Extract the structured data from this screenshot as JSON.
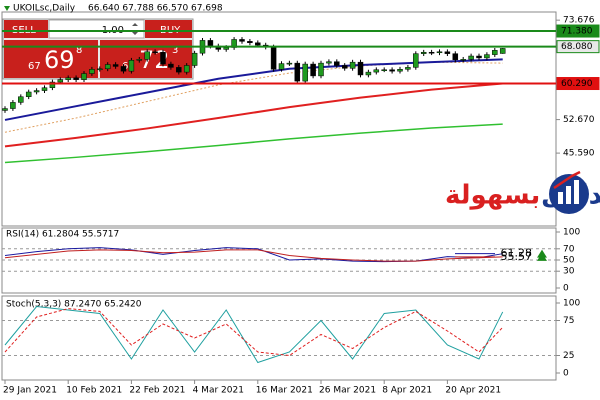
{
  "chart_data": [
    {
      "type": "candlestick",
      "title": "UKOILsc,Daily",
      "ohlc_text": "66.640 67.788 66.570 67.698",
      "categories": [
        "29 Jan 2021",
        null,
        null,
        null,
        null,
        null,
        null,
        null,
        "10 Feb 2021",
        null,
        null,
        null,
        null,
        null,
        null,
        null,
        "22 Feb 2021",
        null,
        null,
        null,
        null,
        null,
        null,
        null,
        "4 Mar 2021",
        null,
        null,
        null,
        null,
        null,
        null,
        null,
        "16 Mar 2021",
        null,
        null,
        null,
        null,
        null,
        null,
        null,
        "26 Mar 2021",
        null,
        null,
        null,
        null,
        null,
        null,
        null,
        "8 Apr 2021",
        null,
        null,
        null,
        null,
        null,
        null,
        null,
        "20 Apr 2021",
        null,
        null,
        null,
        null,
        null,
        null,
        null
      ],
      "open": [
        54.6,
        55.0,
        56.3,
        57.5,
        58.5,
        58.8,
        59.4,
        60.6,
        61.1,
        61.5,
        61.1,
        62.4,
        63.3,
        63.4,
        64.3,
        63.9,
        62.9,
        65.2,
        65.4,
        67.0,
        66.9,
        64.4,
        63.7,
        62.7,
        64.1,
        66.7,
        69.4,
        68.2,
        67.5,
        67.9,
        69.6,
        69.2,
        68.9,
        68.4,
        68.0,
        63.3,
        64.5,
        64.6,
        60.8,
        64.4,
        61.9,
        64.6,
        64.9,
        64.1,
        63.5,
        64.8,
        62.1,
        62.7,
        63.2,
        63.2,
        62.9,
        63.3,
        63.7,
        66.6,
        66.9,
        66.8,
        67.0,
        66.6,
        65.3,
        65.4,
        66.1,
        65.7,
        66.4,
        66.64
      ],
      "high": [
        55.5,
        56.8,
        58.0,
        59.0,
        59.3,
        59.9,
        61.1,
        61.6,
        62.0,
        62.0,
        62.9,
        63.8,
        63.9,
        64.8,
        64.8,
        64.4,
        65.7,
        65.9,
        67.5,
        67.5,
        67.4,
        64.9,
        64.2,
        64.6,
        67.2,
        69.9,
        69.9,
        68.7,
        68.4,
        70.1,
        70.1,
        69.7,
        69.4,
        68.9,
        68.5,
        65.0,
        65.1,
        65.1,
        64.9,
        64.9,
        65.1,
        65.4,
        65.4,
        64.6,
        65.3,
        65.3,
        63.2,
        63.7,
        63.7,
        63.7,
        63.8,
        64.2,
        67.1,
        67.4,
        67.4,
        67.5,
        67.5,
        67.1,
        65.9,
        66.6,
        66.6,
        66.9,
        67.8,
        67.788
      ],
      "low": [
        54.1,
        54.5,
        55.8,
        57.0,
        58.0,
        58.3,
        58.9,
        60.1,
        60.6,
        60.6,
        60.6,
        61.9,
        62.8,
        62.9,
        63.4,
        62.4,
        62.4,
        64.7,
        64.9,
        66.4,
        63.9,
        63.2,
        62.2,
        62.2,
        63.6,
        66.2,
        67.7,
        67.0,
        67.0,
        67.4,
        68.7,
        68.4,
        67.9,
        67.5,
        62.8,
        62.8,
        64.0,
        60.3,
        60.3,
        61.4,
        61.4,
        64.1,
        63.6,
        63.0,
        63.0,
        61.6,
        61.6,
        62.2,
        62.7,
        62.4,
        62.4,
        62.8,
        63.2,
        66.1,
        66.3,
        66.3,
        66.1,
        64.8,
        64.8,
        64.9,
        65.2,
        65.2,
        65.9,
        66.57
      ],
      "close": [
        55.0,
        56.3,
        57.5,
        58.5,
        58.8,
        59.4,
        60.6,
        61.1,
        61.5,
        61.1,
        62.4,
        63.3,
        63.4,
        64.3,
        63.9,
        62.9,
        65.2,
        65.4,
        67.0,
        66.9,
        64.4,
        63.7,
        62.7,
        64.1,
        66.7,
        69.4,
        68.2,
        67.5,
        67.9,
        69.6,
        69.2,
        68.9,
        68.4,
        68.0,
        63.3,
        64.5,
        64.6,
        60.8,
        64.4,
        61.9,
        64.6,
        64.9,
        64.1,
        63.5,
        64.8,
        62.1,
        62.7,
        63.2,
        63.2,
        62.9,
        63.3,
        63.7,
        66.6,
        66.9,
        66.8,
        67.0,
        66.6,
        65.3,
        65.4,
        66.1,
        65.7,
        66.4,
        67.3,
        67.698
      ],
      "up_color": "#1f9a1f",
      "down_color": "#000000",
      "ylim": [
        30.4,
        75.4
      ],
      "yticks": [
        73.676,
        {
          "value": 52.67,
          "label": "52.670"
        },
        {
          "value": 45.59,
          "label": "45.590"
        }
      ],
      "lines": [
        {
          "color": "#e0a060",
          "dash": "2,2",
          "width": 1,
          "x": [
            0,
            9,
            18,
            27,
            36,
            45,
            54,
            63
          ],
          "values": [
            50.0,
            53.0,
            56.5,
            60.0,
            62.5,
            64.0,
            64.8,
            64.6
          ]
        },
        {
          "color": "#30c030",
          "dash": "",
          "width": 1.5,
          "x": [
            0,
            9,
            18,
            27,
            36,
            45,
            54,
            63
          ],
          "values": [
            43.6,
            44.7,
            45.9,
            47.2,
            48.6,
            49.8,
            50.9,
            51.7
          ]
        },
        {
          "color": "#e02020",
          "dash": "",
          "width": 2,
          "x": [
            0,
            9,
            18,
            27,
            36,
            45,
            54,
            63
          ],
          "values": [
            47.0,
            48.8,
            50.8,
            53.0,
            55.3,
            57.3,
            59.0,
            60.29
          ]
        },
        {
          "color": "#1a1a9a",
          "dash": "",
          "width": 2,
          "x": [
            0,
            9,
            18,
            27,
            36,
            45,
            54,
            63
          ],
          "values": [
            52.6,
            55.5,
            58.4,
            61.3,
            63.4,
            64.2,
            64.8,
            65.4
          ]
        }
      ],
      "levels": [
        {
          "value": 71.38,
          "label": "71.380",
          "color": "#1a8a1a",
          "text_color": "#ffffff"
        },
        {
          "value": 68.08,
          "label": "68.080",
          "color": "#1a8a1a",
          "text_color": "#000000"
        },
        {
          "value": 60.29,
          "label": "60.290",
          "color": "#e01010",
          "text_color": "#ffffff"
        }
      ]
    },
    {
      "type": "line",
      "title": "RSI(14) 61.2804 55.5717",
      "ylim": [
        0,
        100
      ],
      "yticks": [
        100,
        70,
        50,
        30,
        0
      ],
      "level_lines": true,
      "x": [
        0,
        4,
        8,
        12,
        16,
        20,
        24,
        28,
        32,
        36,
        40,
        44,
        48,
        52,
        56,
        60,
        63
      ],
      "series": [
        {
          "color": "#1a1aa0",
          "values": [
            58,
            65,
            70,
            72,
            68,
            60,
            67,
            72,
            70,
            50,
            52,
            48,
            47,
            48,
            56,
            54,
            61.28
          ],
          "last_label": "61.28"
        },
        {
          "color": "#c02020",
          "values": [
            54,
            60,
            66,
            68,
            67,
            63,
            64,
            68,
            68,
            58,
            53,
            50,
            48,
            48,
            52,
            54,
            55.57
          ],
          "last_label": "55.57"
        }
      ],
      "label_color": "#1a8a1a"
    },
    {
      "type": "line",
      "title": "Stoch(5,3,3) 87.2470 65.2420",
      "ylim": [
        0,
        100
      ],
      "yticks": [
        100,
        75,
        25,
        0
      ],
      "level_lines": true,
      "x": [
        0,
        4,
        8,
        12,
        16,
        20,
        24,
        28,
        32,
        36,
        40,
        44,
        48,
        52,
        56,
        60,
        63
      ],
      "series": [
        {
          "color": "#20a0a0",
          "dash": "",
          "values": [
            40,
            95,
            90,
            85,
            20,
            90,
            30,
            90,
            15,
            30,
            75,
            20,
            85,
            90,
            40,
            20,
            87.247
          ]
        },
        {
          "color": "#e02020",
          "dash": "3,2",
          "values": [
            30,
            80,
            92,
            88,
            40,
            70,
            50,
            70,
            30,
            25,
            55,
            35,
            65,
            88,
            60,
            30,
            65.242
          ]
        }
      ]
    }
  ],
  "trade_panel": {
    "sell": "SELL",
    "buy": "BUY",
    "lot": "1.00",
    "sell_price": {
      "big_prefix": "67",
      "main": "69",
      "sup": "8"
    },
    "buy_price": {
      "big_prefix": "67",
      "main": "72",
      "sup": "3"
    }
  },
  "logo": {
    "word1": "التداول",
    "word2": "بسهولة"
  }
}
